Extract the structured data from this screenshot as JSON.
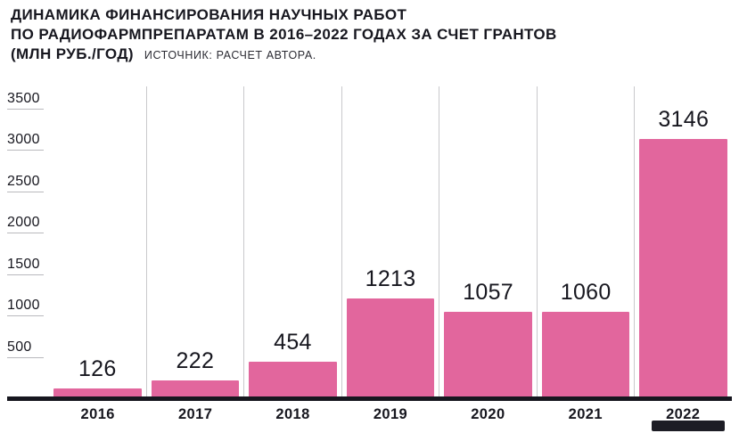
{
  "title": {
    "line1": "ДИНАМИКА ФИНАНСИРОВАНИЯ НАУЧНЫХ РАБОТ",
    "line2": "ПО РАДИОФАРМПРЕПАРАТАМ В 2016–2022 ГОДАХ ЗА СЧЕТ ГРАНТОВ",
    "line3": "(МЛН РУБ./ГОД)",
    "source": "ИСТОЧНИК: РАСЧЕТ АВТОРА."
  },
  "chart_data": {
    "type": "bar",
    "categories": [
      "2016",
      "2017",
      "2018",
      "2019",
      "2020",
      "2021",
      "2022"
    ],
    "values": [
      126,
      222,
      454,
      1213,
      1057,
      1060,
      3146
    ],
    "title": "Динамика финансирования научных работ по радиофармпрепаратам в 2016–2022 годах за счет грантов",
    "xlabel": "",
    "ylabel": "млн руб./год",
    "ylim": [
      0,
      3500
    ],
    "yticks": [
      3500,
      3000,
      2500,
      2000,
      1500,
      1000,
      500
    ],
    "grid": "vertical-between-categories",
    "legend": "none",
    "colors": {
      "bar": "#e2669d",
      "axis": "#17171f",
      "gridline": "#c9c9cc",
      "tick_line": "#b9b9bd",
      "text": "#17171f"
    }
  }
}
